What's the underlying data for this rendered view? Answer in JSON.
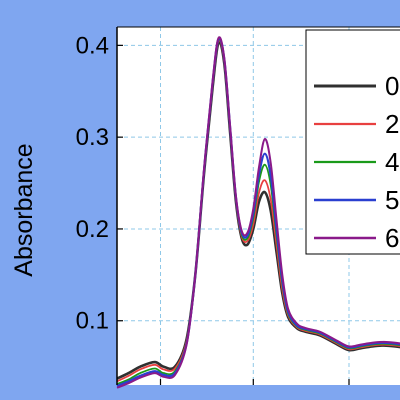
{
  "chart_data": {
    "type": "line",
    "title": "",
    "xlabel": "",
    "ylabel": "Absorbance",
    "xlim": [
      0,
      1
    ],
    "ylim": [
      0.03,
      0.42
    ],
    "y_ticks": [
      0.1,
      0.2,
      0.3,
      0.4
    ],
    "y_tick_labels": [
      "0.1",
      "0.2",
      "0.3",
      "0.4"
    ],
    "grid": true,
    "legend_position": "top-right",
    "series": [
      {
        "name": "0",
        "color": "#303030",
        "width": 2.6,
        "x": [
          0.0,
          0.04,
          0.08,
          0.13,
          0.16,
          0.2,
          0.24,
          0.27,
          0.3,
          0.33,
          0.35,
          0.37,
          0.39,
          0.41,
          0.43,
          0.45,
          0.47,
          0.49,
          0.51,
          0.53,
          0.55,
          0.57,
          0.59,
          0.62,
          0.65,
          0.7,
          0.76,
          0.8,
          0.84,
          0.88,
          0.92,
          0.96,
          1.0
        ],
        "y": [
          0.037,
          0.043,
          0.05,
          0.055,
          0.05,
          0.05,
          0.08,
          0.15,
          0.26,
          0.355,
          0.403,
          0.38,
          0.305,
          0.23,
          0.19,
          0.183,
          0.2,
          0.23,
          0.24,
          0.22,
          0.175,
          0.13,
          0.104,
          0.092,
          0.088,
          0.084,
          0.074,
          0.068,
          0.07,
          0.072,
          0.073,
          0.072,
          0.07
        ]
      },
      {
        "name": "2",
        "color": "#e84040",
        "width": 1.8,
        "x": [
          0.0,
          0.04,
          0.08,
          0.13,
          0.16,
          0.2,
          0.24,
          0.27,
          0.3,
          0.33,
          0.35,
          0.37,
          0.39,
          0.41,
          0.43,
          0.45,
          0.47,
          0.49,
          0.51,
          0.53,
          0.55,
          0.57,
          0.59,
          0.62,
          0.65,
          0.7,
          0.76,
          0.8,
          0.84,
          0.88,
          0.92,
          0.96,
          1.0
        ],
        "y": [
          0.034,
          0.04,
          0.047,
          0.052,
          0.047,
          0.048,
          0.078,
          0.15,
          0.262,
          0.358,
          0.405,
          0.382,
          0.308,
          0.232,
          0.192,
          0.187,
          0.205,
          0.24,
          0.253,
          0.232,
          0.183,
          0.134,
          0.106,
          0.093,
          0.089,
          0.085,
          0.075,
          0.069,
          0.071,
          0.073,
          0.074,
          0.073,
          0.071
        ]
      },
      {
        "name": "4",
        "color": "#1a9a1a",
        "width": 1.8,
        "x": [
          0.0,
          0.04,
          0.08,
          0.13,
          0.16,
          0.2,
          0.24,
          0.27,
          0.3,
          0.33,
          0.35,
          0.37,
          0.39,
          0.41,
          0.43,
          0.45,
          0.47,
          0.49,
          0.51,
          0.53,
          0.55,
          0.57,
          0.59,
          0.62,
          0.65,
          0.7,
          0.76,
          0.8,
          0.84,
          0.88,
          0.92,
          0.96,
          1.0
        ],
        "y": [
          0.031,
          0.036,
          0.043,
          0.048,
          0.043,
          0.045,
          0.076,
          0.15,
          0.263,
          0.36,
          0.406,
          0.384,
          0.31,
          0.234,
          0.194,
          0.19,
          0.212,
          0.252,
          0.27,
          0.248,
          0.193,
          0.14,
          0.108,
          0.094,
          0.09,
          0.086,
          0.076,
          0.07,
          0.072,
          0.074,
          0.075,
          0.074,
          0.072
        ]
      },
      {
        "name": "5",
        "color": "#2a3fd0",
        "width": 2.2,
        "x": [
          0.0,
          0.04,
          0.08,
          0.13,
          0.16,
          0.2,
          0.24,
          0.27,
          0.3,
          0.33,
          0.35,
          0.37,
          0.39,
          0.41,
          0.43,
          0.45,
          0.47,
          0.49,
          0.51,
          0.53,
          0.55,
          0.57,
          0.59,
          0.62,
          0.65,
          0.7,
          0.76,
          0.8,
          0.84,
          0.88,
          0.92,
          0.96,
          1.0
        ],
        "y": [
          0.029,
          0.034,
          0.04,
          0.045,
          0.041,
          0.043,
          0.075,
          0.15,
          0.264,
          0.361,
          0.407,
          0.385,
          0.311,
          0.235,
          0.196,
          0.193,
          0.217,
          0.26,
          0.282,
          0.258,
          0.2,
          0.144,
          0.11,
          0.095,
          0.091,
          0.087,
          0.077,
          0.071,
          0.073,
          0.075,
          0.076,
          0.075,
          0.073
        ]
      },
      {
        "name": "6",
        "color": "#8a1a8a",
        "width": 2.0,
        "x": [
          0.0,
          0.04,
          0.08,
          0.13,
          0.16,
          0.2,
          0.24,
          0.27,
          0.3,
          0.33,
          0.35,
          0.37,
          0.39,
          0.41,
          0.43,
          0.45,
          0.47,
          0.49,
          0.51,
          0.53,
          0.55,
          0.57,
          0.59,
          0.62,
          0.65,
          0.7,
          0.76,
          0.8,
          0.84,
          0.88,
          0.92,
          0.96,
          1.0
        ],
        "y": [
          0.027,
          0.032,
          0.038,
          0.043,
          0.039,
          0.041,
          0.074,
          0.15,
          0.265,
          0.362,
          0.408,
          0.386,
          0.312,
          0.236,
          0.198,
          0.196,
          0.222,
          0.268,
          0.298,
          0.272,
          0.21,
          0.15,
          0.113,
          0.097,
          0.092,
          0.088,
          0.078,
          0.072,
          0.074,
          0.076,
          0.077,
          0.076,
          0.074
        ]
      }
    ]
  }
}
